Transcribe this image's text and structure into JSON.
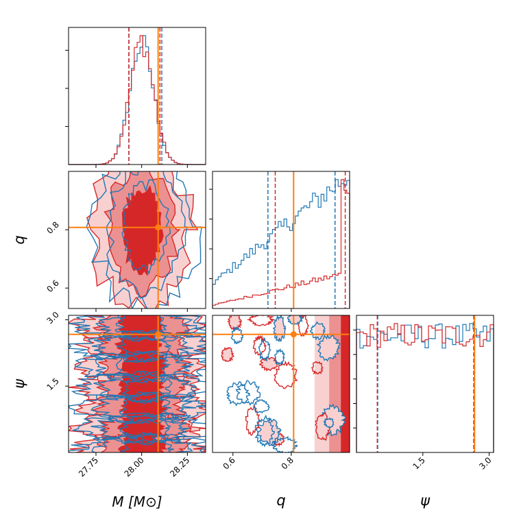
{
  "chart_data": {
    "type": "corner",
    "parameters": [
      {
        "key": "M",
        "axis_label": "M [M⊙]",
        "range": [
          27.6,
          28.35
        ],
        "ticks": [
          "27.75",
          "28.00",
          "28.25"
        ],
        "truth": 28.09
      },
      {
        "key": "q",
        "axis_label": "q",
        "range": [
          0.53,
          1.0
        ],
        "ticks": [
          "0.6",
          "0.8"
        ],
        "truth": 0.808
      },
      {
        "key": "psi",
        "axis_label": "ψ",
        "range": [
          0.0,
          3.1
        ],
        "ticks": [
          "1.5",
          "3.0"
        ],
        "truth": 2.67
      }
    ],
    "series": [
      {
        "color": "#1f77b4",
        "quantiles": {
          "M": [
            27.93,
            28.11
          ],
          "q": [
            0.72,
            0.95
          ],
          "psi": [
            0.48,
            2.66
          ]
        }
      },
      {
        "color": "#d62728",
        "quantiles": {
          "M": [
            27.93,
            28.1
          ],
          "q": [
            0.745,
            0.985
          ],
          "psi": [
            0.47,
            2.65
          ]
        }
      }
    ],
    "truth_color": "#ff7f0e",
    "contour_levels": 3,
    "colors": {
      "series1": "#1f77b4",
      "series2": "#d62728",
      "truth": "#ff7f0e"
    }
  }
}
